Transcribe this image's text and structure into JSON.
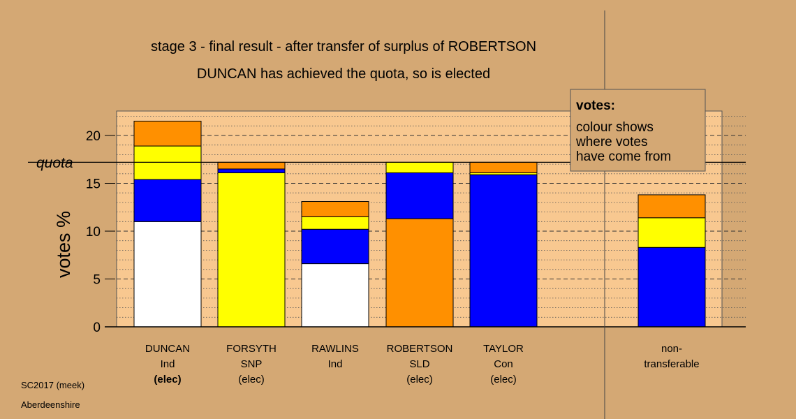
{
  "chart_data": {
    "type": "bar",
    "stacked": true,
    "title": "stage 3 - final result - after transfer of surplus of ROBERTSON",
    "subtitle": "DUNCAN has achieved the quota, so is elected",
    "ylabel": "votes %",
    "ylim": [
      0,
      22.5
    ],
    "yticks": [
      0,
      5,
      10,
      15,
      20
    ],
    "quota": 17.2,
    "quota_label": "quota",
    "colors": {
      "Ind": "#ffffff",
      "SNP": "#ffff00",
      "Con": "#0000ff",
      "SLD": "#ff9000",
      "background": "#d4a874",
      "plot_area": "#f8c890"
    },
    "candidates": [
      {
        "name": "DUNCAN",
        "party": "Ind",
        "status": "(elec)",
        "status_bold": true,
        "segments": [
          {
            "color": "#ffffff",
            "value": 11.0
          },
          {
            "color": "#0000ff",
            "value": 4.4
          },
          {
            "color": "#ffff00",
            "value": 3.5
          },
          {
            "color": "#ff9000",
            "value": 2.6
          }
        ]
      },
      {
        "name": "FORSYTH",
        "party": "SNP",
        "status": "(elec)",
        "status_bold": false,
        "segments": [
          {
            "color": "#ffff00",
            "value": 16.1
          },
          {
            "color": "#0000ff",
            "value": 0.4
          },
          {
            "color": "#ff9000",
            "value": 0.7
          }
        ]
      },
      {
        "name": "RAWLINS",
        "party": "Ind",
        "status": "",
        "status_bold": false,
        "segments": [
          {
            "color": "#ffffff",
            "value": 6.6
          },
          {
            "color": "#0000ff",
            "value": 3.6
          },
          {
            "color": "#ffff00",
            "value": 1.3
          },
          {
            "color": "#ff9000",
            "value": 1.6
          }
        ]
      },
      {
        "name": "ROBERTSON",
        "party": "SLD",
        "status": "(elec)",
        "status_bold": false,
        "segments": [
          {
            "color": "#ff9000",
            "value": 11.3
          },
          {
            "color": "#0000ff",
            "value": 4.8
          },
          {
            "color": "#ffff00",
            "value": 1.1
          }
        ]
      },
      {
        "name": "TAYLOR",
        "party": "Con",
        "status": "(elec)",
        "status_bold": false,
        "segments": [
          {
            "color": "#0000ff",
            "value": 15.9
          },
          {
            "color": "#ffff00",
            "value": 0.2
          },
          {
            "color": "#ff9000",
            "value": 1.1
          }
        ]
      }
    ],
    "nontransferable": {
      "line1": "non-",
      "line2": "transferable",
      "segments": [
        {
          "color": "#0000ff",
          "value": 8.3
        },
        {
          "color": "#ffff00",
          "value": 3.1
        },
        {
          "color": "#ff9000",
          "value": 2.4
        }
      ]
    },
    "legend": {
      "title": "votes:",
      "lines": [
        "colour shows",
        "where votes",
        "have come from"
      ],
      "placement": "top-right"
    }
  },
  "footer": {
    "line1": "SC2017 (meek)",
    "line2": "Aberdeenshire"
  }
}
